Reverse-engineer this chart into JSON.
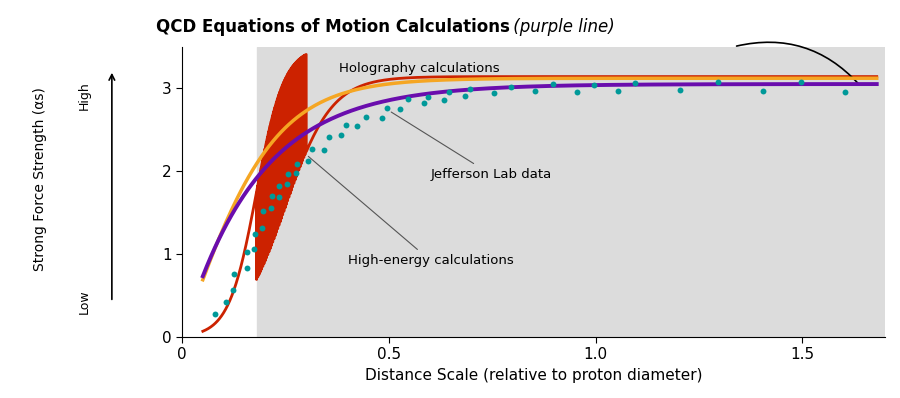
{
  "title_bold": "QCD Equations of Motion Calculations",
  "title_italic": " (purple line)",
  "xlabel": "Distance Scale (relative to proton diameter)",
  "ylabel": "Strong Force Strength (αs)",
  "ylabel_low": "Low",
  "ylabel_high": "High",
  "xlim": [
    0,
    1.7
  ],
  "ylim": [
    0,
    3.5
  ],
  "xticks": [
    0,
    0.5,
    1.0,
    1.5
  ],
  "yticks": [
    0,
    1,
    2,
    3
  ],
  "bg_color": "#dcdcdc",
  "bg_xstart": 0.18,
  "holography_label": "Holography calculations",
  "jefferson_label": "Jefferson Lab data",
  "highenergy_label": "High-energy calculations",
  "holography_color": "#cc2200",
  "orange_line_color": "#f5a623",
  "purple_line_color": "#6a0dad",
  "dot_color": "#009999",
  "annotation_arrow_color": "#222222",
  "jefferson_dots": [
    [
      0.08,
      0.28
    ],
    [
      0.1,
      0.4
    ],
    [
      0.12,
      0.6
    ],
    [
      0.13,
      0.72
    ],
    [
      0.15,
      0.85
    ],
    [
      0.16,
      1.0
    ],
    [
      0.17,
      1.1
    ],
    [
      0.18,
      1.22
    ],
    [
      0.19,
      1.35
    ],
    [
      0.2,
      1.48
    ],
    [
      0.21,
      1.58
    ],
    [
      0.22,
      1.65
    ],
    [
      0.23,
      1.72
    ],
    [
      0.24,
      1.8
    ],
    [
      0.25,
      1.88
    ],
    [
      0.26,
      1.93
    ],
    [
      0.27,
      2.0
    ],
    [
      0.28,
      2.05
    ],
    [
      0.3,
      2.15
    ],
    [
      0.32,
      2.22
    ],
    [
      0.34,
      2.3
    ],
    [
      0.36,
      2.38
    ],
    [
      0.38,
      2.45
    ],
    [
      0.4,
      2.52
    ],
    [
      0.42,
      2.58
    ],
    [
      0.45,
      2.63
    ],
    [
      0.48,
      2.68
    ],
    [
      0.5,
      2.73
    ],
    [
      0.52,
      2.77
    ],
    [
      0.55,
      2.82
    ],
    [
      0.58,
      2.85
    ],
    [
      0.6,
      2.87
    ],
    [
      0.63,
      2.9
    ],
    [
      0.65,
      2.92
    ],
    [
      0.68,
      2.93
    ],
    [
      0.7,
      2.95
    ],
    [
      0.75,
      2.97
    ],
    [
      0.8,
      2.97
    ],
    [
      0.85,
      2.99
    ],
    [
      0.9,
      3.02
    ],
    [
      0.95,
      3.0
    ],
    [
      1.0,
      3.02
    ],
    [
      1.05,
      3.0
    ],
    [
      1.1,
      3.02
    ],
    [
      1.2,
      3.0
    ],
    [
      1.3,
      3.03
    ],
    [
      1.4,
      3.0
    ],
    [
      1.5,
      3.05
    ],
    [
      1.6,
      3.0
    ]
  ],
  "scatter_noise_x": [
    0,
    0.005,
    0.003,
    -0.004,
    0.006,
    -0.003,
    0.004,
    -0.005,
    0.003,
    -0.004,
    0.005,
    -0.003,
    0.004,
    -0.005,
    0.003,
    -0.004,
    0.006,
    -0.003,
    0.004,
    -0.005,
    0.003,
    -0.004,
    0.005,
    -0.003,
    0.004,
    -0.005,
    0.003,
    -0.004,
    0.006,
    -0.003,
    0.004,
    -0.005,
    0.003,
    -0.004,
    0.005,
    -0.003,
    0.004,
    -0.005,
    0.003,
    -0.004,
    0.006,
    -0.003,
    0.004,
    -0.005,
    0.003,
    -0.004,
    0.005,
    -0.003,
    0.004
  ],
  "scatter_noise_y": [
    0.0,
    0.02,
    -0.03,
    0.04,
    -0.02,
    0.03,
    -0.04,
    0.02,
    -0.03,
    0.04,
    -0.02,
    0.05,
    -0.03,
    0.02,
    -0.04,
    0.03,
    -0.02,
    0.04,
    -0.03,
    0.05,
    -0.04,
    0.03,
    -0.02,
    0.04,
    -0.03,
    0.02,
    -0.04,
    0.03,
    -0.02,
    0.05,
    -0.03,
    0.02,
    -0.04,
    0.03,
    -0.02,
    0.04,
    -0.03,
    0.05,
    -0.02,
    0.03,
    -0.04,
    0.02,
    -0.03,
    0.04,
    -0.02,
    0.05,
    -0.03,
    0.02,
    -0.04
  ]
}
